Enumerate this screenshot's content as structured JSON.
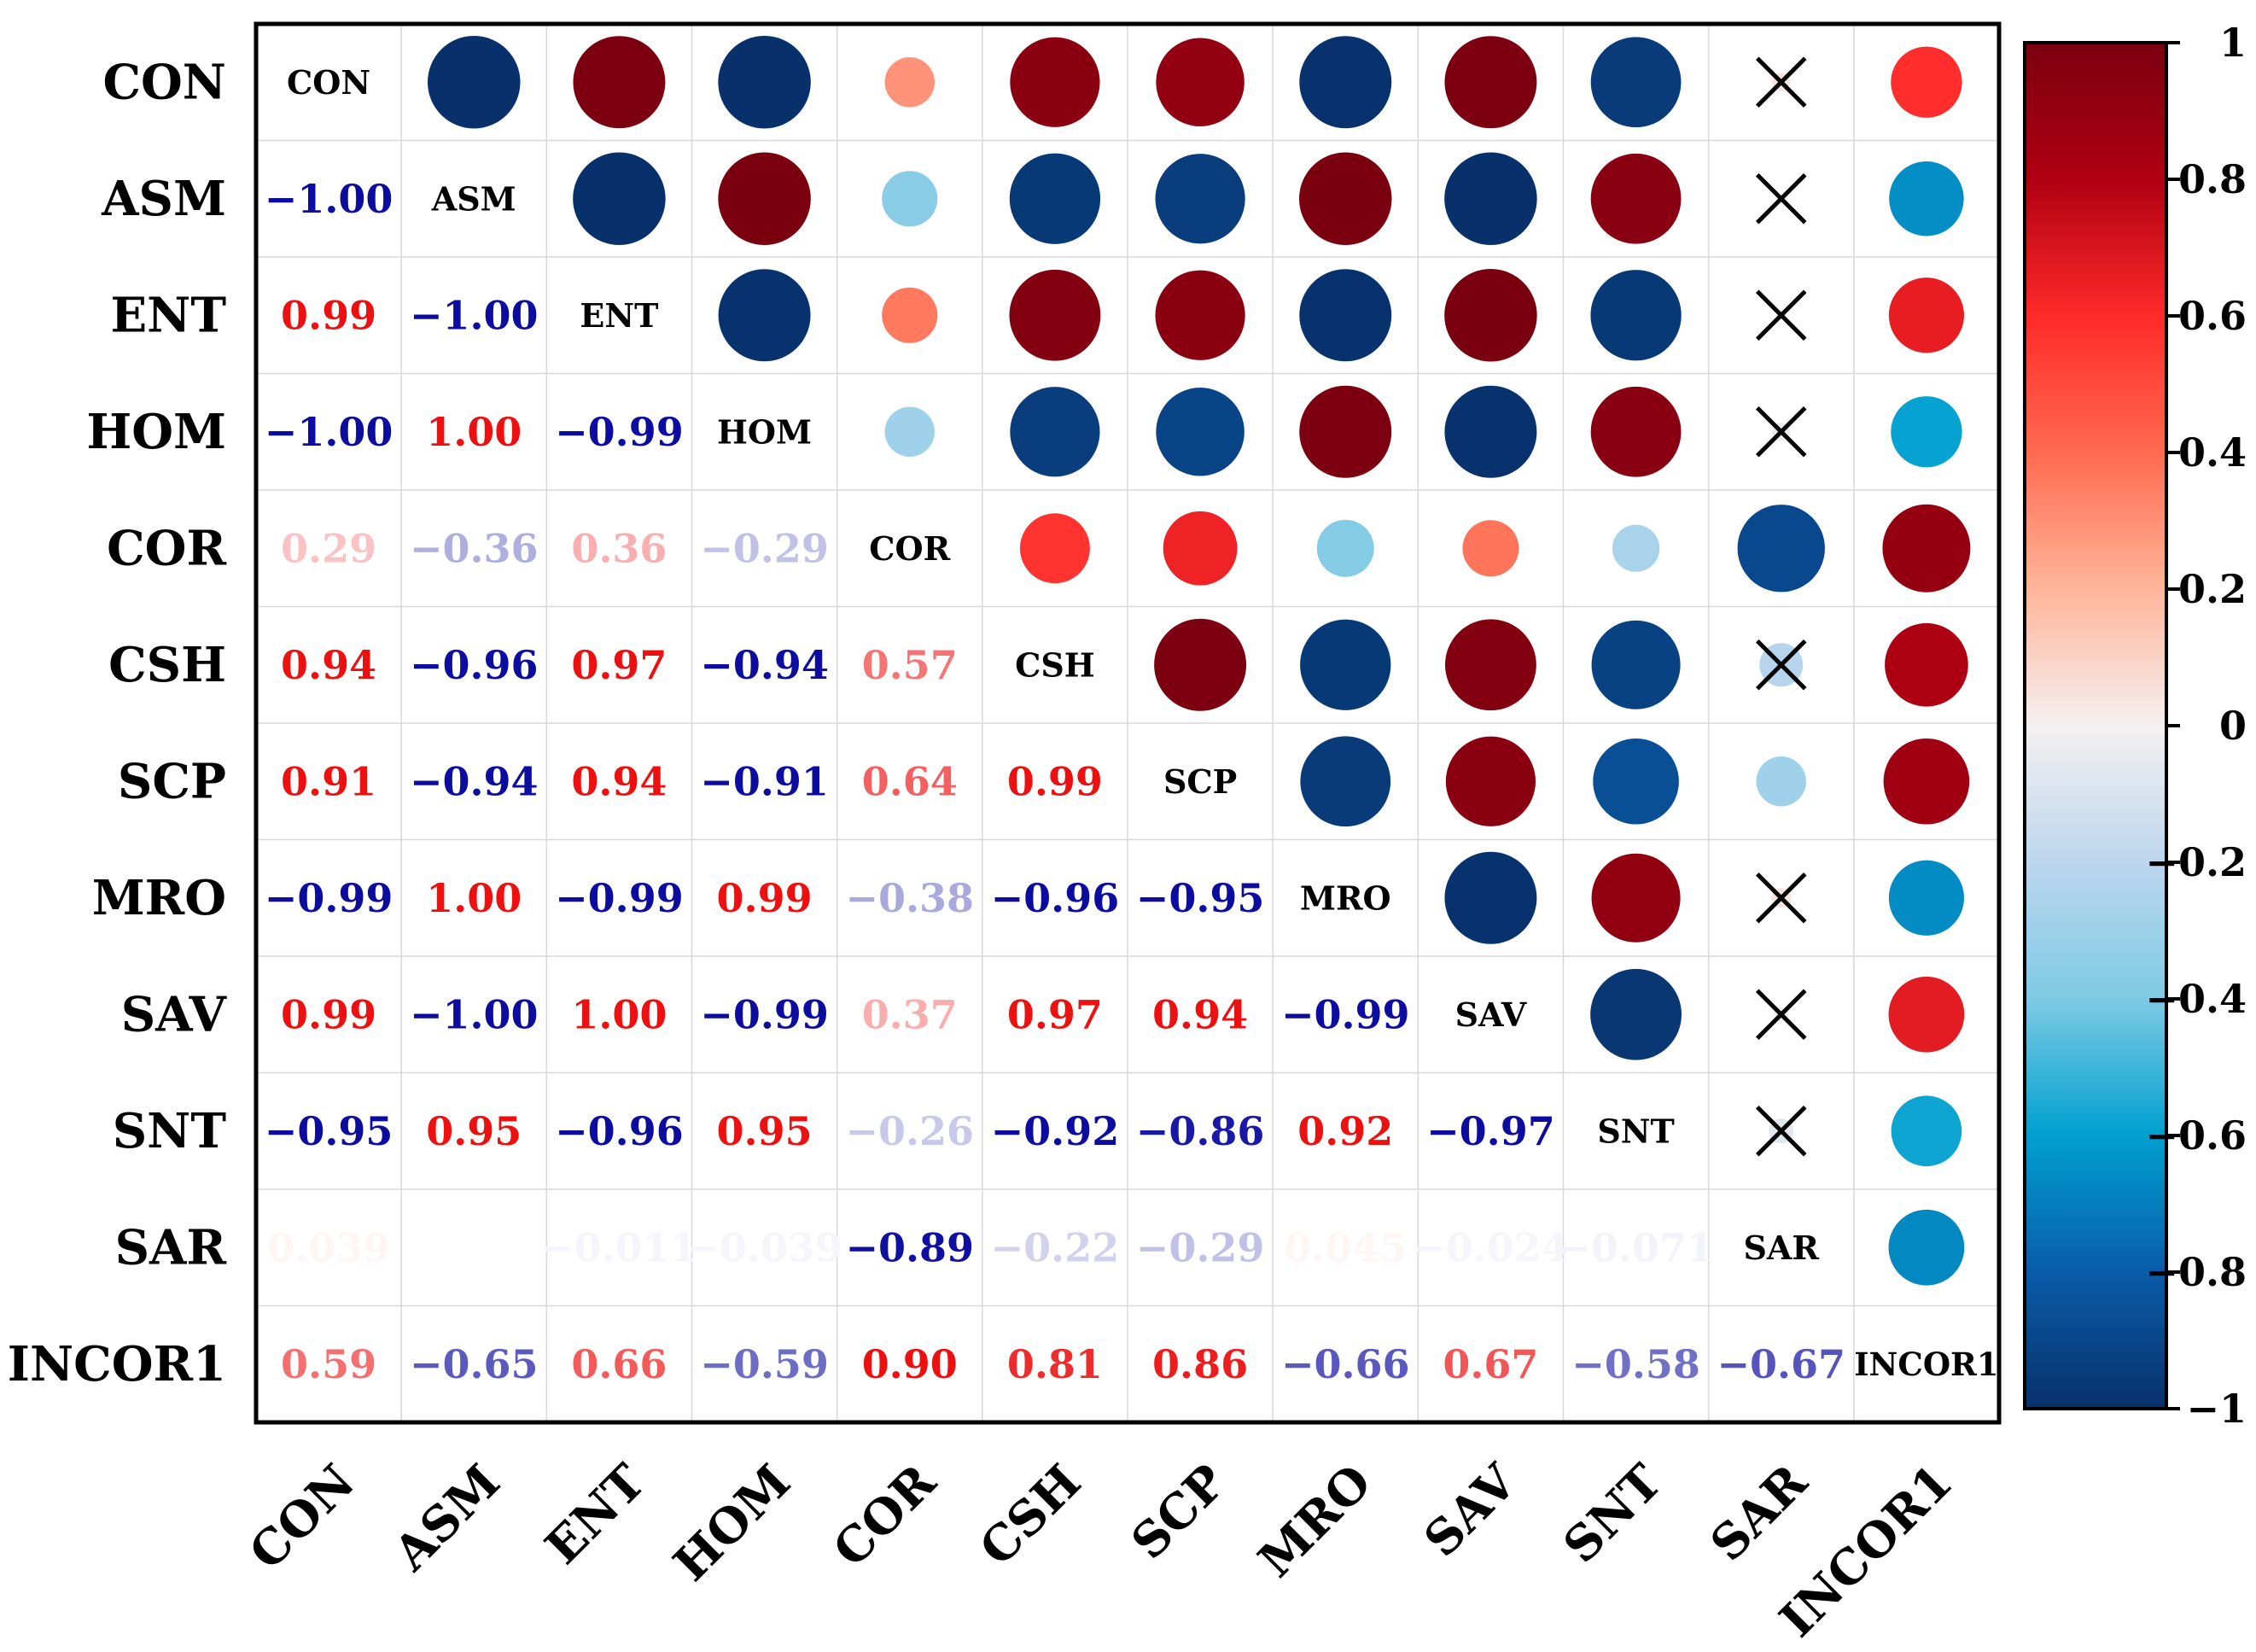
{
  "chart_data": {
    "type": "heatmap",
    "variables": [
      "CON",
      "ASM",
      "ENT",
      "HOM",
      "COR",
      "CSH",
      "SCP",
      "MRO",
      "SAV",
      "SNT",
      "SAR",
      "INCOR1"
    ],
    "matrix": [
      [
        1,
        -1.0,
        0.99,
        -1.0,
        0.29,
        0.94,
        0.91,
        -0.99,
        0.99,
        -0.95,
        0.039,
        0.59
      ],
      [
        -1.0,
        1,
        -1.0,
        1.0,
        -0.36,
        -0.96,
        -0.94,
        1.0,
        -1.0,
        0.95,
        0.0,
        -0.65
      ],
      [
        0.99,
        -1.0,
        1,
        -0.99,
        0.36,
        0.97,
        0.94,
        -0.99,
        1.0,
        -0.96,
        -0.011,
        0.66
      ],
      [
        -1.0,
        1.0,
        -0.99,
        1,
        -0.29,
        -0.94,
        -0.91,
        0.99,
        -0.99,
        0.95,
        -0.039,
        -0.59
      ],
      [
        0.29,
        -0.36,
        0.36,
        -0.29,
        1,
        0.57,
        0.64,
        -0.38,
        0.37,
        -0.26,
        -0.89,
        0.9
      ],
      [
        0.94,
        -0.96,
        0.97,
        -0.94,
        0.57,
        1,
        0.99,
        -0.96,
        0.97,
        -0.92,
        -0.22,
        0.81
      ],
      [
        0.91,
        -0.94,
        0.94,
        -0.91,
        0.64,
        0.99,
        1,
        -0.95,
        0.94,
        -0.86,
        -0.29,
        0.86
      ],
      [
        -0.99,
        1.0,
        -0.99,
        0.99,
        -0.38,
        -0.96,
        -0.95,
        1,
        -0.99,
        0.92,
        0.045,
        -0.66
      ],
      [
        0.99,
        -1.0,
        1.0,
        -0.99,
        0.37,
        0.97,
        0.94,
        -0.99,
        1,
        -0.97,
        -0.024,
        0.67
      ],
      [
        -0.95,
        0.95,
        -0.96,
        0.95,
        -0.26,
        -0.92,
        -0.86,
        0.92,
        -0.97,
        1,
        -0.071,
        -0.58
      ],
      [
        0.039,
        0.0,
        -0.011,
        -0.039,
        -0.89,
        -0.22,
        -0.29,
        0.045,
        -0.024,
        -0.071,
        1,
        -0.67
      ],
      [
        0.59,
        -0.65,
        0.66,
        -0.59,
        0.9,
        0.81,
        0.86,
        -0.66,
        0.67,
        -0.58,
        -0.67,
        1
      ]
    ],
    "lower_labels": [
      [],
      [
        "−1.00"
      ],
      [
        "0.99",
        "−1.00"
      ],
      [
        "−1.00",
        "1.00",
        "−0.99"
      ],
      [
        "0.29",
        "−0.36",
        "0.36",
        "−0.29"
      ],
      [
        "0.94",
        "−0.96",
        "0.97",
        "−0.94",
        "0.57"
      ],
      [
        "0.91",
        "−0.94",
        "0.94",
        "−0.91",
        "0.64",
        "0.99"
      ],
      [
        "−0.99",
        "1.00",
        "−0.99",
        "0.99",
        "−0.38",
        "−0.96",
        "−0.95"
      ],
      [
        "0.99",
        "−1.00",
        "1.00",
        "−0.99",
        "0.37",
        "0.97",
        "0.94",
        "−0.99"
      ],
      [
        "−0.95",
        "0.95",
        "−0.96",
        "0.95",
        "−0.26",
        "−0.92",
        "−0.86",
        "0.92",
        "−0.97"
      ],
      [
        "0.039",
        "",
        "−0.011",
        "−0.039",
        "−0.89",
        "−0.22",
        "−0.29",
        "0.045",
        "−0.024",
        "−0.071"
      ],
      [
        "0.59",
        "−0.65",
        "0.66",
        "−0.59",
        "0.90",
        "0.81",
        "0.86",
        "−0.66",
        "0.67",
        "−0.58",
        "−0.67"
      ]
    ],
    "not_significant": [
      [
        0,
        10
      ],
      [
        1,
        10
      ],
      [
        2,
        10
      ],
      [
        3,
        10
      ],
      [
        5,
        10
      ],
      [
        7,
        10
      ],
      [
        8,
        10
      ],
      [
        9,
        10
      ]
    ],
    "upper_marker": "circle",
    "lower_marker": "text",
    "colorbar": {
      "min": -1,
      "max": 1,
      "ticks": [
        1,
        0.8,
        0.6,
        0.4,
        0.2,
        0,
        -0.2,
        -0.4,
        -0.6,
        -0.8,
        -1
      ],
      "tick_labels": [
        "1",
        "0.8",
        "0.6",
        "0.4",
        "0.2",
        "0",
        "−0.2",
        "−0.4",
        "−0.6",
        "−0.8",
        "−1"
      ],
      "position": "right"
    },
    "colors": {
      "pos_max": "#7a0010",
      "pos_mid": "#ff2a2a",
      "pos_low": "#ff9a7a",
      "zero": "#f5f0f0",
      "neg_low": "#a8d8ea",
      "neg_mid": "#00a0d0",
      "neg_strong": "#0a5ca8",
      "neg_max": "#08306b"
    },
    "title": "",
    "xlabel": "",
    "ylabel": ""
  }
}
